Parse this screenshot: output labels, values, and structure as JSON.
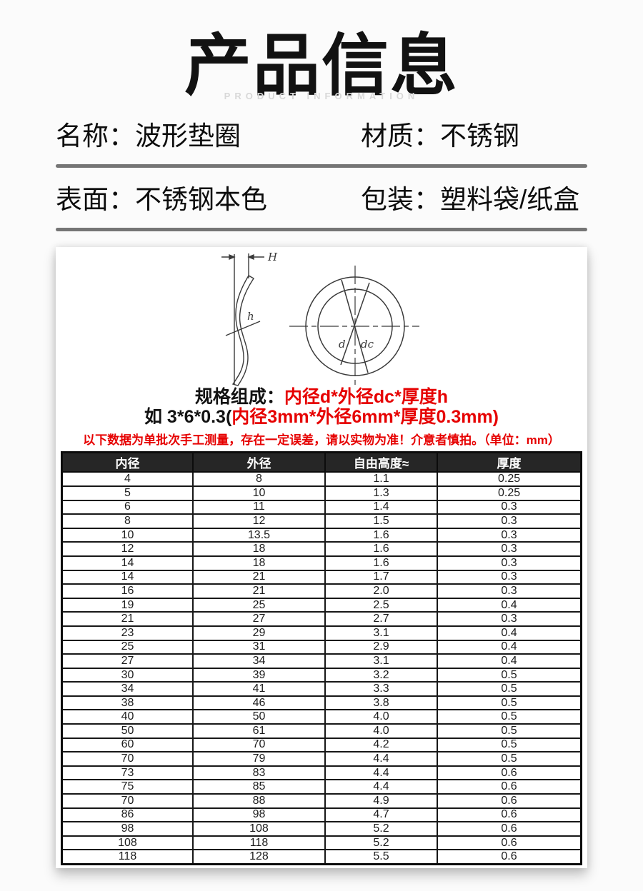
{
  "header": {
    "title": "产品信息",
    "subtitle": "PRODUCT INFORMATION"
  },
  "info": {
    "fields": [
      {
        "label": "名称：",
        "value": "波形垫圈"
      },
      {
        "label": "材质：",
        "value": "不锈钢"
      },
      {
        "label": "表面：",
        "value": "不锈钢本色"
      },
      {
        "label": "包装：",
        "value": "塑料袋/纸盒"
      }
    ]
  },
  "diagram": {
    "labels": {
      "H": "H",
      "h": "h",
      "d": "d",
      "dc": "dc"
    }
  },
  "spec": {
    "line1_black": "规格组成：",
    "line1_red": "内径d*外径dc*厚度h",
    "line2_black": "如 3*6*0.3(",
    "line2_red": "内径3mm*外径6mm*厚度0.3mm)",
    "note": "以下数据为单批次手工测量，存在一定误差，请以实物为准！介意者慎拍。（单位：mm）"
  },
  "table": {
    "headers": [
      "内径",
      "外径",
      "自由高度≈",
      "厚度"
    ],
    "rows": [
      [
        "4",
        "8",
        "1.1",
        "0.25"
      ],
      [
        "5",
        "10",
        "1.3",
        "0.25"
      ],
      [
        "6",
        "11",
        "1.4",
        "0.3"
      ],
      [
        "8",
        "12",
        "1.5",
        "0.3"
      ],
      [
        "10",
        "13.5",
        "1.6",
        "0.3"
      ],
      [
        "12",
        "18",
        "1.6",
        "0.3"
      ],
      [
        "14",
        "18",
        "1.6",
        "0.3"
      ],
      [
        "14",
        "21",
        "1.7",
        "0.3"
      ],
      [
        "16",
        "21",
        "2.0",
        "0.3"
      ],
      [
        "19",
        "25",
        "2.5",
        "0.4"
      ],
      [
        "21",
        "27",
        "2.7",
        "0.3"
      ],
      [
        "23",
        "29",
        "3.1",
        "0.4"
      ],
      [
        "25",
        "31",
        "2.9",
        "0.4"
      ],
      [
        "27",
        "34",
        "3.1",
        "0.4"
      ],
      [
        "30",
        "39",
        "3.2",
        "0.5"
      ],
      [
        "34",
        "41",
        "3.3",
        "0.5"
      ],
      [
        "38",
        "46",
        "3.8",
        "0.5"
      ],
      [
        "40",
        "50",
        "4.0",
        "0.5"
      ],
      [
        "50",
        "61",
        "4.0",
        "0.5"
      ],
      [
        "60",
        "70",
        "4.2",
        "0.5"
      ],
      [
        "70",
        "79",
        "4.4",
        "0.5"
      ],
      [
        "73",
        "83",
        "4.4",
        "0.6"
      ],
      [
        "75",
        "85",
        "4.4",
        "0.6"
      ],
      [
        "70",
        "88",
        "4.9",
        "0.6"
      ],
      [
        "86",
        "98",
        "4.7",
        "0.6"
      ],
      [
        "98",
        "108",
        "5.2",
        "0.6"
      ],
      [
        "108",
        "118",
        "5.2",
        "0.6"
      ],
      [
        "118",
        "128",
        "5.5",
        "0.6"
      ]
    ]
  },
  "colors": {
    "accent_red": "#e60000",
    "table_header_bg": "#262626",
    "divider_gray": "#757575"
  }
}
